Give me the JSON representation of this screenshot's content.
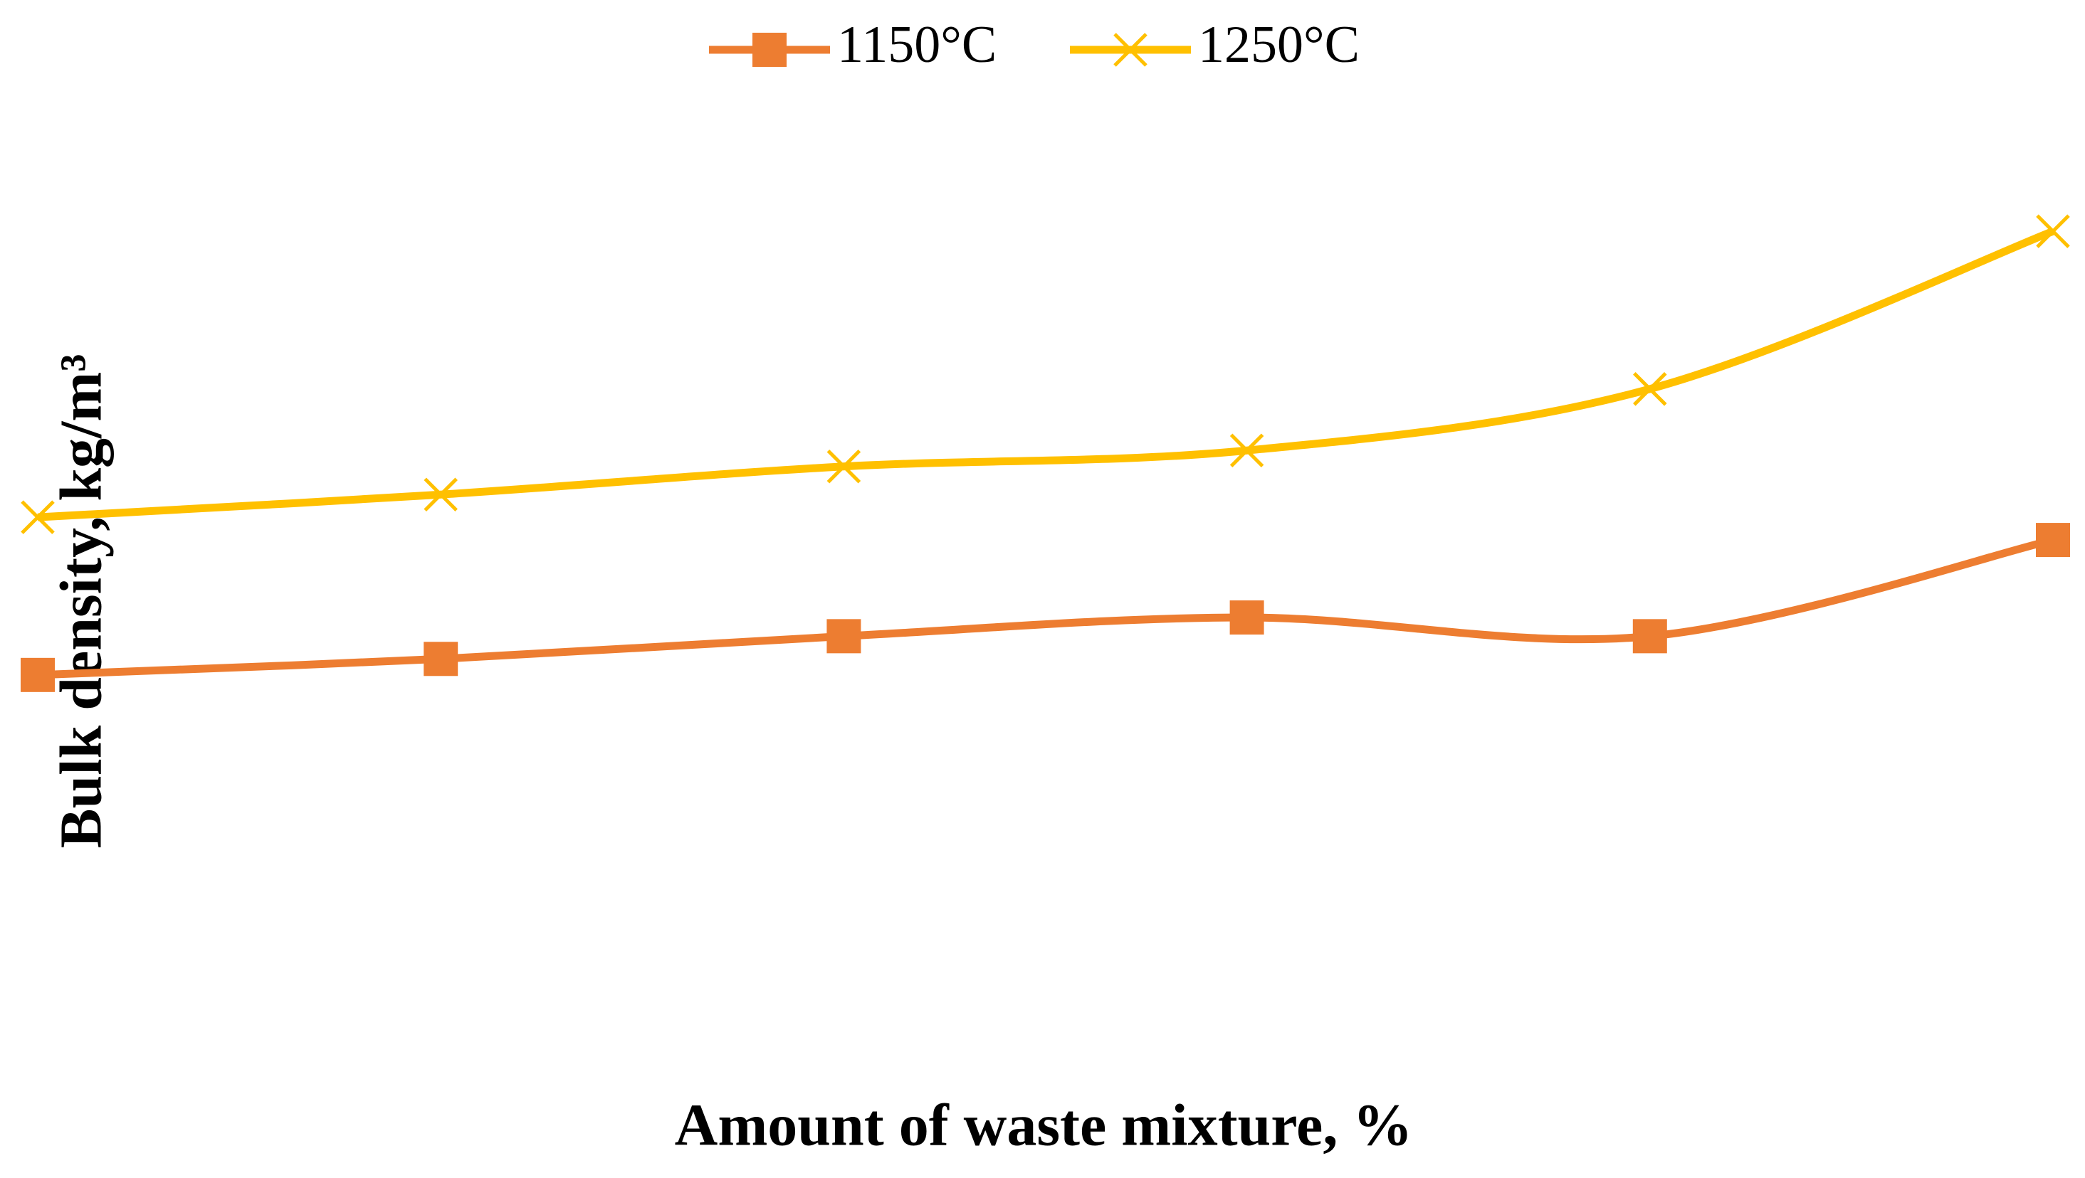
{
  "chart_data": {
    "type": "line",
    "x_label": "Amount of waste mixture, %",
    "y_label": "Bulk density, kg/m³",
    "categories": [
      null,
      null,
      null,
      null,
      null,
      null
    ],
    "series": [
      {
        "name": "1150°C",
        "color": "#ED7D31",
        "marker": "square",
        "values": [
          1695,
          1707,
          1724,
          1738,
          1724,
          1796
        ]
      },
      {
        "name": "1250°C",
        "color": "#FFC000",
        "marker": "x",
        "values": [
          1813,
          1830,
          1851,
          1863,
          1909,
          2027
        ]
      }
    ],
    "ylim": [
      1400,
      2100
    ],
    "smooth": true,
    "legend": "top"
  }
}
